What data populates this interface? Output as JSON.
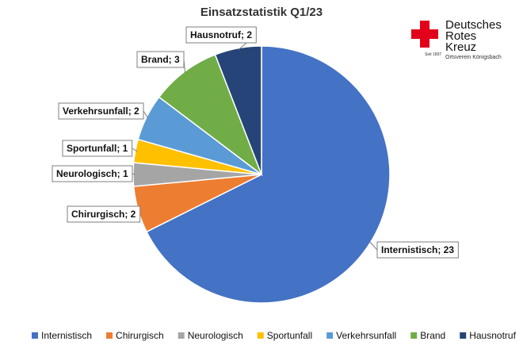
{
  "chart_data": {
    "type": "pie",
    "title": "Einsatzstatistik Q1/23",
    "categories": [
      "Internistisch",
      "Chirurgisch",
      "Neurologisch",
      "Sportunfall",
      "Verkehrsunfall",
      "Brand",
      "Hausnotruf"
    ],
    "values": [
      23,
      2,
      1,
      1,
      2,
      3,
      2
    ],
    "data_labels": [
      "Internistisch; 23",
      "Chirurgisch; 2",
      "Neurologisch; 1",
      "Sportunfall; 1",
      "Verkehrsunfall; 2",
      "Brand; 3",
      "Hausnotruf; 2"
    ],
    "colors": [
      "#4472C4",
      "#ED7D31",
      "#A5A5A5",
      "#FFC000",
      "#5B9BD5",
      "#70AD47",
      "#264478"
    ],
    "start_angle_deg": 0,
    "direction": "clockwise",
    "legend_position": "bottom"
  },
  "logo": {
    "name": "red-cross-logo",
    "cross_color": "#E2001A",
    "line1": "Deutsches",
    "line2": "Rotes",
    "line3": "Kreuz",
    "subline": "Ortsverein Königsbach",
    "seit": "Seit 1897"
  }
}
